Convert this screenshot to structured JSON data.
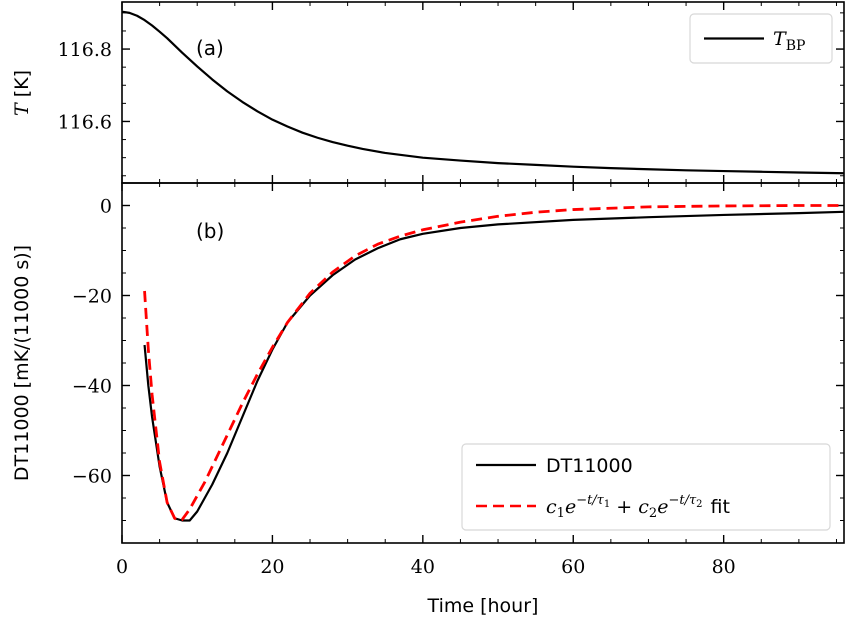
{
  "chart_data": [
    {
      "panel_label": "(a)",
      "type": "line",
      "xlabel": "",
      "ylabel_italic": "T",
      "ylabel_unit": "[K]",
      "xlim": [
        0,
        96
      ],
      "ylim": [
        116.43,
        116.93
      ],
      "yticks": [
        116.6,
        116.8
      ],
      "ytick_labels": [
        "116.6",
        "116.8"
      ],
      "legend_position": "top-right",
      "series": [
        {
          "name": "T_BP",
          "legend_main": "T",
          "legend_sub": "BP",
          "color": "#000000",
          "style": "solid",
          "x": [
            0,
            1,
            2,
            3,
            4,
            5,
            6,
            7,
            8,
            10,
            12,
            14,
            16,
            18,
            20,
            22,
            24,
            26,
            28,
            30,
            32,
            35,
            40,
            45,
            50,
            55,
            60,
            65,
            70,
            75,
            80,
            85,
            90,
            96
          ],
          "y": [
            116.903,
            116.9,
            116.892,
            116.88,
            116.865,
            116.848,
            116.83,
            116.81,
            116.79,
            116.752,
            116.716,
            116.683,
            116.654,
            116.628,
            116.605,
            116.586,
            116.569,
            116.555,
            116.543,
            116.533,
            116.524,
            116.513,
            116.5,
            116.492,
            116.485,
            116.48,
            116.475,
            116.471,
            116.468,
            116.465,
            116.463,
            116.461,
            116.459,
            116.457
          ]
        }
      ]
    },
    {
      "panel_label": "(b)",
      "type": "line",
      "xlabel": "Time [hour]",
      "ylabel": "DT11000 [mK/(11000 s)]",
      "xlim": [
        0,
        96
      ],
      "ylim": [
        -75,
        5
      ],
      "xticks": [
        0,
        20,
        40,
        60,
        80
      ],
      "xtick_labels": [
        "0",
        "20",
        "40",
        "60",
        "80"
      ],
      "yticks": [
        -60,
        -40,
        -20,
        0
      ],
      "ytick_labels": [
        "−60",
        "−40",
        "−20",
        "0"
      ],
      "legend_position": "bottom-right",
      "series": [
        {
          "name": "DT11000",
          "color": "#000000",
          "style": "solid",
          "x": [
            3,
            3.5,
            4,
            5,
            6,
            7,
            8,
            9,
            10,
            11,
            12,
            14,
            16,
            18,
            20,
            22,
            25,
            28,
            31,
            34,
            37,
            40,
            45,
            50,
            60,
            70,
            80,
            90,
            96
          ],
          "y": [
            -31,
            -40,
            -47,
            -58,
            -66,
            -69.5,
            -70,
            -70,
            -68,
            -65,
            -62,
            -55,
            -47,
            -39,
            -32,
            -26,
            -20,
            -15.5,
            -12,
            -9.5,
            -7.5,
            -6.3,
            -5,
            -4.2,
            -3.2,
            -2.6,
            -2.1,
            -1.7,
            -1.4
          ]
        },
        {
          "name": "c1 exp(-t/tau1) + c2 exp(-t/tau2) fit",
          "color": "#ff0000",
          "style": "dashed",
          "x": [
            3,
            3.5,
            4,
            5,
            6,
            7,
            7.5,
            8,
            9,
            10,
            11,
            12,
            14,
            16,
            18,
            20,
            22,
            25,
            28,
            31,
            34,
            37,
            40,
            45,
            50,
            55,
            60,
            70,
            80,
            90,
            96
          ],
          "y": [
            -19,
            -32,
            -42,
            -57,
            -66,
            -69.5,
            -70,
            -69.8,
            -67.5,
            -64.5,
            -61.5,
            -58,
            -51,
            -44,
            -37.5,
            -31.5,
            -26,
            -19.5,
            -14.8,
            -11.2,
            -8.6,
            -6.8,
            -5.4,
            -3.7,
            -2.4,
            -1.5,
            -0.9,
            -0.3,
            -0.1,
            0,
            0
          ]
        }
      ],
      "legend": [
        {
          "label": "DT11000"
        },
        {
          "label_math": [
            "c",
            "1",
            "e",
            "−t/τ",
            "1",
            " + ",
            "c",
            "2",
            "e",
            "−t/τ",
            "2"
          ],
          "label_suffix": "fit"
        }
      ]
    }
  ]
}
